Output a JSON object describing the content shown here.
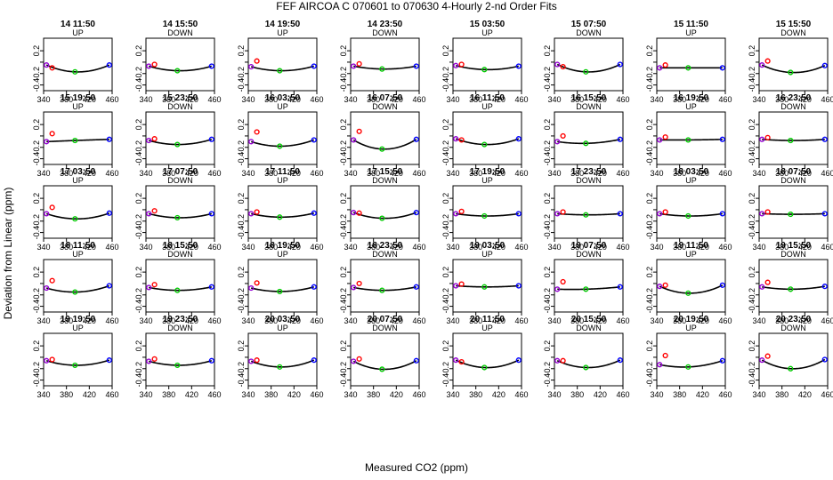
{
  "title": "FEF   AIRCOA C   070601 to 070630   4-Hourly 2-nd Order Fits",
  "chart_data": {
    "type": "scatter",
    "title": "FEF   AIRCOA C   070601 to 070630   4-Hourly 2-nd Order Fits",
    "xlabel": "Measured CO2 (ppm)",
    "ylabel": "Deviation from Linear (ppm)",
    "xlim": [
      340,
      460
    ],
    "ylim": [
      -0.5,
      0.42
    ],
    "xticks": [
      340,
      380,
      420,
      460
    ],
    "yticks": [
      -0.4,
      -0.2,
      0.0,
      0.2
    ],
    "ytick_labels": [
      "-0.4",
      "-0.2",
      "",
      "0.2"
    ],
    "x_tick_labels": [
      "340",
      "380",
      "420",
      "460"
    ],
    "standard_colors": [
      "#9400d3",
      "#ff0000",
      "#00cc00",
      "#0000ff"
    ],
    "standard_co2": [
      345,
      355,
      395,
      455
    ],
    "panels": [
      {
        "time": "14 11:50",
        "dir": "UP",
        "y": [
          -0.05,
          -0.1,
          -0.17,
          -0.05
        ]
      },
      {
        "time": "14 15:50",
        "dir": "DOWN",
        "y": [
          -0.07,
          -0.04,
          -0.15,
          -0.07
        ]
      },
      {
        "time": "14 19:50",
        "dir": "UP",
        "y": [
          -0.08,
          0.02,
          -0.15,
          -0.07
        ]
      },
      {
        "time": "14 23:50",
        "dir": "DOWN",
        "y": [
          -0.07,
          -0.03,
          -0.12,
          -0.07
        ]
      },
      {
        "time": "15 03:50",
        "dir": "UP",
        "y": [
          -0.06,
          -0.04,
          -0.13,
          -0.07
        ]
      },
      {
        "time": "15 07:50",
        "dir": "DOWN",
        "y": [
          -0.04,
          -0.08,
          -0.17,
          -0.04
        ]
      },
      {
        "time": "15 11:50",
        "dir": "UP",
        "y": [
          -0.1,
          -0.05,
          -0.1,
          -0.1
        ]
      },
      {
        "time": "15 15:50",
        "dir": "DOWN",
        "y": [
          -0.05,
          0.02,
          -0.18,
          -0.06
        ]
      },
      {
        "time": "15 19:50",
        "dir": "UP",
        "y": [
          -0.1,
          0.04,
          -0.08,
          -0.06
        ]
      },
      {
        "time": "15 23:50",
        "dir": "DOWN",
        "y": [
          -0.08,
          -0.05,
          -0.15,
          -0.06
        ]
      },
      {
        "time": "16 03:50",
        "dir": "UP",
        "y": [
          -0.1,
          0.07,
          -0.18,
          -0.07
        ]
      },
      {
        "time": "16 07:50",
        "dir": "DOWN",
        "y": [
          -0.07,
          0.08,
          -0.23,
          -0.06
        ]
      },
      {
        "time": "16 11:50",
        "dir": "UP",
        "y": [
          -0.05,
          -0.07,
          -0.15,
          -0.05
        ]
      },
      {
        "time": "16 15:50",
        "dir": "DOWN",
        "y": [
          -0.1,
          0.0,
          -0.13,
          -0.06
        ]
      },
      {
        "time": "16 19:50",
        "dir": "UP",
        "y": [
          -0.07,
          -0.02,
          -0.07,
          -0.06
        ]
      },
      {
        "time": "16 23:50",
        "dir": "DOWN",
        "y": [
          -0.06,
          -0.03,
          -0.08,
          -0.06
        ]
      },
      {
        "time": "17 03:50",
        "dir": "UP",
        "y": [
          -0.07,
          0.04,
          -0.16,
          -0.06
        ]
      },
      {
        "time": "17 07:50",
        "dir": "DOWN",
        "y": [
          -0.07,
          -0.02,
          -0.14,
          -0.07
        ]
      },
      {
        "time": "17 11:50",
        "dir": "UP",
        "y": [
          -0.07,
          -0.04,
          -0.13,
          -0.06
        ]
      },
      {
        "time": "17 15:50",
        "dir": "DOWN",
        "y": [
          -0.05,
          -0.06,
          -0.15,
          -0.05
        ]
      },
      {
        "time": "17 19:50",
        "dir": "UP",
        "y": [
          -0.07,
          -0.03,
          -0.11,
          -0.07
        ]
      },
      {
        "time": "17 23:50",
        "dir": "DOWN",
        "y": [
          -0.07,
          -0.04,
          -0.09,
          -0.07
        ]
      },
      {
        "time": "18 03:50",
        "dir": "UP",
        "y": [
          -0.07,
          -0.04,
          -0.11,
          -0.07
        ]
      },
      {
        "time": "18 07:50",
        "dir": "DOWN",
        "y": [
          -0.07,
          -0.04,
          -0.08,
          -0.07
        ]
      },
      {
        "time": "18 11:50",
        "dir": "UP",
        "y": [
          -0.08,
          0.05,
          -0.15,
          -0.04
        ]
      },
      {
        "time": "18 15:50",
        "dir": "DOWN",
        "y": [
          -0.07,
          -0.02,
          -0.12,
          -0.06
        ]
      },
      {
        "time": "18 19:50",
        "dir": "UP",
        "y": [
          -0.08,
          0.01,
          -0.14,
          -0.06
        ]
      },
      {
        "time": "18 23:50",
        "dir": "DOWN",
        "y": [
          -0.07,
          0.0,
          -0.12,
          -0.06
        ]
      },
      {
        "time": "19 03:50",
        "dir": "UP",
        "y": [
          -0.04,
          -0.01,
          -0.06,
          -0.04
        ]
      },
      {
        "time": "19 07:50",
        "dir": "DOWN",
        "y": [
          -0.1,
          0.03,
          -0.1,
          -0.06
        ]
      },
      {
        "time": "19 11:50",
        "dir": "UP",
        "y": [
          -0.05,
          -0.03,
          -0.17,
          -0.03
        ]
      },
      {
        "time": "19 15:50",
        "dir": "DOWN",
        "y": [
          -0.06,
          0.02,
          -0.1,
          -0.05
        ]
      },
      {
        "time": "19 19:50",
        "dir": "UP",
        "y": [
          -0.06,
          -0.04,
          -0.14,
          -0.05
        ]
      },
      {
        "time": "19 23:50",
        "dir": "DOWN",
        "y": [
          -0.07,
          -0.03,
          -0.14,
          -0.06
        ]
      },
      {
        "time": "20 03:50",
        "dir": "UP",
        "y": [
          -0.07,
          -0.05,
          -0.17,
          -0.05
        ]
      },
      {
        "time": "20 07:50",
        "dir": "DOWN",
        "y": [
          -0.07,
          -0.03,
          -0.21,
          -0.06
        ]
      },
      {
        "time": "20 11:50",
        "dir": "UP",
        "y": [
          -0.05,
          -0.08,
          -0.18,
          -0.05
        ]
      },
      {
        "time": "20 15:50",
        "dir": "DOWN",
        "y": [
          -0.06,
          -0.06,
          -0.18,
          -0.05
        ]
      },
      {
        "time": "20 19:50",
        "dir": "UP",
        "y": [
          -0.13,
          0.03,
          -0.17,
          -0.06
        ]
      },
      {
        "time": "20 23:50",
        "dir": "DOWN",
        "y": [
          -0.05,
          0.02,
          -0.2,
          -0.04
        ]
      }
    ]
  }
}
